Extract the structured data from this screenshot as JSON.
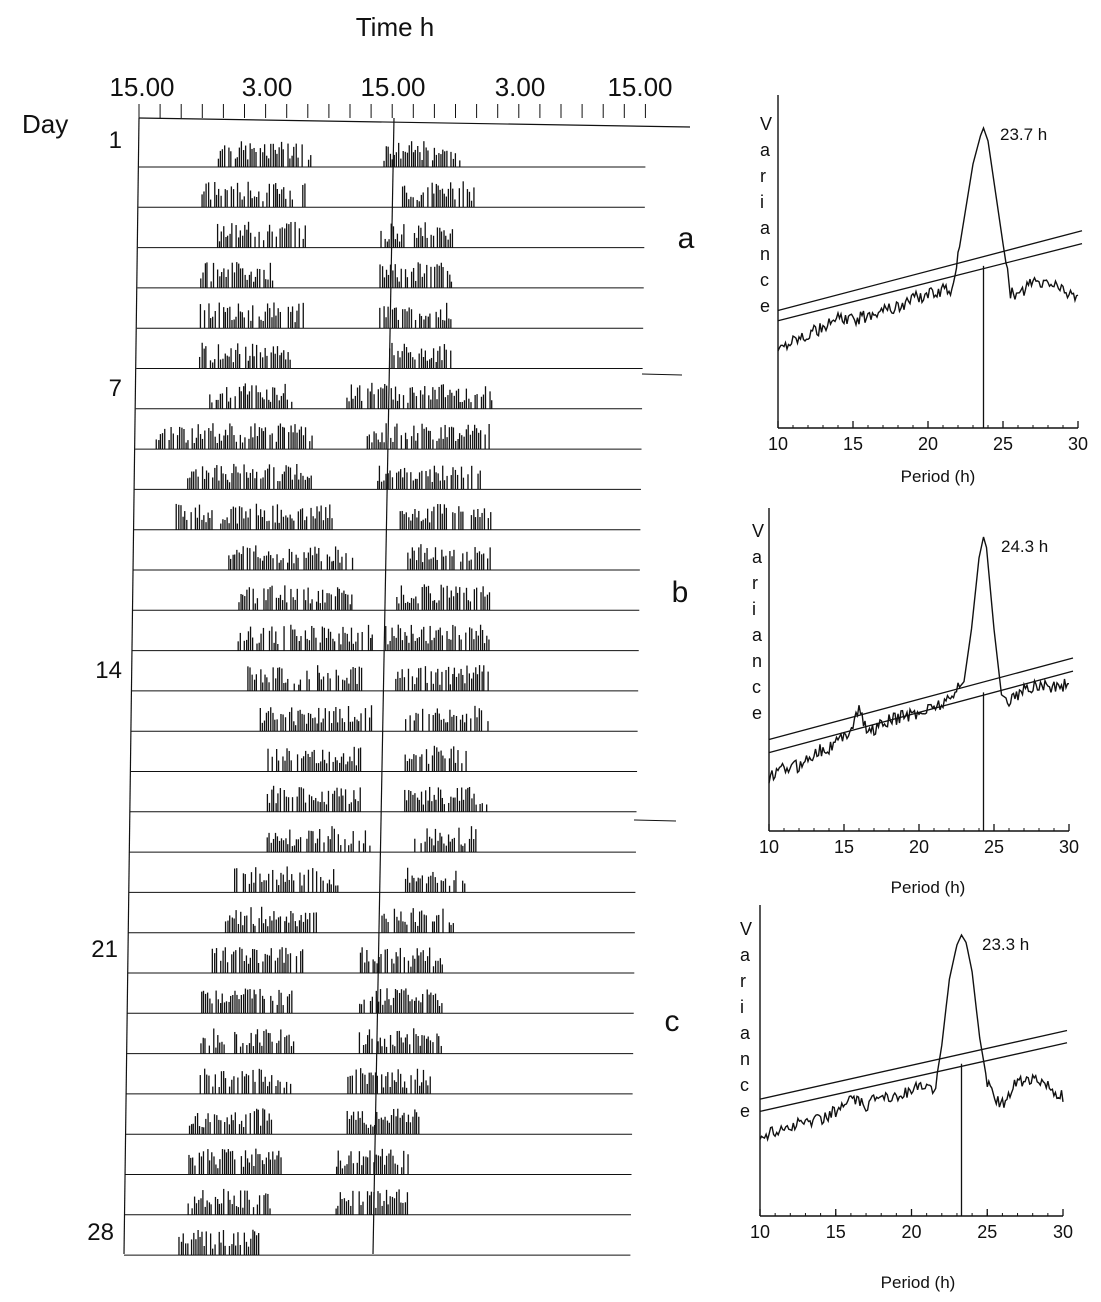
{
  "figure": {
    "actogram_title": "Time h",
    "day_label": "Day",
    "time_ticks": [
      "15.00",
      "3.00",
      "15.00",
      "3.00",
      "15.00"
    ],
    "day_ticks": [
      "1",
      "7",
      "14",
      "21",
      "28"
    ],
    "section_labels": [
      "a",
      "b",
      "c"
    ]
  },
  "chart_data": [
    {
      "type": "bar",
      "title": "Time h",
      "xlabel": "Time h",
      "ylabel": "Day",
      "x_tick_labels": [
        "15.00",
        "3.00",
        "15.00",
        "3.00",
        "15.00"
      ],
      "y_tick_labels": [
        "1",
        "7",
        "14",
        "21",
        "28"
      ],
      "days": 28,
      "hours_per_row": 48,
      "rows": [
        {
          "day": 1,
          "active": [
            [
              22.5,
              32
            ],
            [
              38,
              45.5
            ]
          ]
        },
        {
          "day": 2,
          "active": [
            [
              21,
              31
            ],
            [
              40,
              47
            ]
          ]
        },
        {
          "day": 3,
          "active": [
            [
              22.5,
              31
            ],
            [
              38,
              45
            ]
          ]
        },
        {
          "day": 4,
          "active": [
            [
              21,
              28
            ],
            [
              38,
              45
            ]
          ]
        },
        {
          "day": 5,
          "active": [
            [
              21,
              31
            ],
            [
              38,
              45
            ]
          ]
        },
        {
          "day": 6,
          "active": [
            [
              21,
              30
            ],
            [
              39,
              45
            ]
          ]
        },
        {
          "day": 7,
          "active": [
            [
              22,
              30
            ],
            [
              35,
              49
            ]
          ]
        },
        {
          "day": 8,
          "active": [
            [
              17,
              32
            ],
            [
              37,
              49
            ]
          ]
        },
        {
          "day": 9,
          "active": [
            [
              20,
              32
            ],
            [
              38,
              48
            ]
          ]
        },
        {
          "day": 10,
          "active": [
            [
              19,
              34
            ],
            [
              40,
              49
            ]
          ]
        },
        {
          "day": 11,
          "active": [
            [
              24,
              36
            ],
            [
              41,
              49
            ]
          ]
        },
        {
          "day": 12,
          "active": [
            [
              25,
              36
            ],
            [
              40,
              49
            ]
          ]
        },
        {
          "day": 13,
          "active": [
            [
              25,
              38
            ],
            [
              39,
              49
            ]
          ]
        },
        {
          "day": 14,
          "active": [
            [
              26,
              37
            ],
            [
              40,
              49
            ]
          ]
        },
        {
          "day": 15,
          "active": [
            [
              27,
              38
            ],
            [
              41,
              49
            ]
          ]
        },
        {
          "day": 16,
          "active": [
            [
              28,
              37
            ],
            [
              41,
              47
            ]
          ]
        },
        {
          "day": 17,
          "active": [
            [
              28,
              37
            ],
            [
              41,
              49
            ]
          ]
        },
        {
          "day": 18,
          "active": [
            [
              28,
              38
            ],
            [
              42,
              48
            ]
          ]
        },
        {
          "day": 19,
          "active": [
            [
              25,
              35
            ],
            [
              41,
              47
            ]
          ]
        },
        {
          "day": 20,
          "active": [
            [
              24,
              33
            ],
            [
              39,
              46
            ]
          ]
        },
        {
          "day": 21,
          "active": [
            [
              23,
              32
            ],
            [
              37,
              45
            ]
          ]
        },
        {
          "day": 22,
          "active": [
            [
              22,
              31
            ],
            [
              37,
              45
            ]
          ]
        },
        {
          "day": 23,
          "active": [
            [
              22,
              31
            ],
            [
              37,
              45
            ]
          ]
        },
        {
          "day": 24,
          "active": [
            [
              22,
              31
            ],
            [
              36,
              44
            ]
          ]
        },
        {
          "day": 25,
          "active": [
            [
              21,
              29
            ],
            [
              36,
              43
            ]
          ]
        },
        {
          "day": 26,
          "active": [
            [
              21,
              30
            ],
            [
              35,
              42
            ]
          ]
        },
        {
          "day": 27,
          "active": [
            [
              21,
              29
            ],
            [
              35,
              42
            ]
          ]
        },
        {
          "day": 28,
          "active": [
            [
              20,
              28
            ]
          ]
        }
      ]
    },
    {
      "type": "line",
      "panel": "a",
      "xlabel": "Period (h)",
      "ylabel": "Variance",
      "xlim": [
        10,
        30
      ],
      "x_ticks": [
        "10",
        "15",
        "20",
        "25",
        "30"
      ],
      "peak_period": 23.7,
      "peak_label": "23.7 h",
      "x": [
        10,
        11,
        12,
        13,
        14,
        15,
        16,
        17,
        18,
        19,
        20,
        21,
        21.5,
        22,
        22.5,
        23,
        23.5,
        23.7,
        24,
        24.5,
        25,
        25.5,
        26,
        26.5,
        27,
        27.5,
        28,
        28.5,
        29,
        29.5,
        30
      ],
      "values": [
        0.14,
        0.18,
        0.2,
        0.22,
        0.26,
        0.25,
        0.27,
        0.3,
        0.3,
        0.34,
        0.35,
        0.37,
        0.36,
        0.5,
        0.68,
        0.86,
        0.97,
        1.0,
        0.95,
        0.75,
        0.55,
        0.36,
        0.34,
        0.38,
        0.4,
        0.39,
        0.4,
        0.39,
        0.37,
        0.36,
        0.34
      ],
      "threshold_low": [
        0.25,
        0.55
      ],
      "threshold_high": [
        0.29,
        0.6
      ]
    },
    {
      "type": "line",
      "panel": "b",
      "xlabel": "Period (h)",
      "ylabel": "Variance",
      "xlim": [
        10,
        30
      ],
      "x_ticks": [
        "10",
        "15",
        "20",
        "25",
        "30"
      ],
      "peak_period": 24.3,
      "peak_label": "24.3 h",
      "x": [
        10,
        11,
        12,
        13,
        14,
        15,
        15.5,
        16,
        16.5,
        17,
        18,
        19,
        20,
        21,
        22,
        23,
        23.5,
        24,
        24.3,
        24.5,
        25,
        25.5,
        26,
        27,
        28,
        29,
        30
      ],
      "values": [
        0.08,
        0.12,
        0.13,
        0.18,
        0.2,
        0.24,
        0.28,
        0.35,
        0.26,
        0.27,
        0.3,
        0.32,
        0.33,
        0.36,
        0.38,
        0.45,
        0.65,
        0.92,
        1.0,
        0.96,
        0.65,
        0.4,
        0.38,
        0.42,
        0.44,
        0.43,
        0.44
      ],
      "threshold_low": [
        0.18,
        0.49
      ],
      "threshold_high": [
        0.23,
        0.54
      ]
    },
    {
      "type": "line",
      "panel": "c",
      "xlabel": "Period (h)",
      "ylabel": "Variance",
      "xlim": [
        10,
        30
      ],
      "x_ticks": [
        "10",
        "15",
        "20",
        "25",
        "30"
      ],
      "peak_period": 23.3,
      "peak_label": "23.3 h",
      "x": [
        10,
        11,
        12,
        13,
        14,
        15,
        16,
        17,
        18,
        19,
        20,
        21,
        21.5,
        22,
        22.5,
        23,
        23.3,
        23.6,
        24,
        24.5,
        25,
        25.5,
        26,
        26.5,
        27,
        27.5,
        28,
        28.5,
        29,
        29.5,
        30
      ],
      "values": [
        0.17,
        0.2,
        0.22,
        0.24,
        0.25,
        0.28,
        0.33,
        0.3,
        0.35,
        0.34,
        0.37,
        0.38,
        0.36,
        0.55,
        0.82,
        0.96,
        1.0,
        0.97,
        0.85,
        0.58,
        0.4,
        0.33,
        0.31,
        0.36,
        0.4,
        0.41,
        0.41,
        0.4,
        0.38,
        0.35,
        0.34
      ],
      "threshold_low": [
        0.28,
        0.56
      ],
      "threshold_high": [
        0.33,
        0.61
      ]
    }
  ]
}
